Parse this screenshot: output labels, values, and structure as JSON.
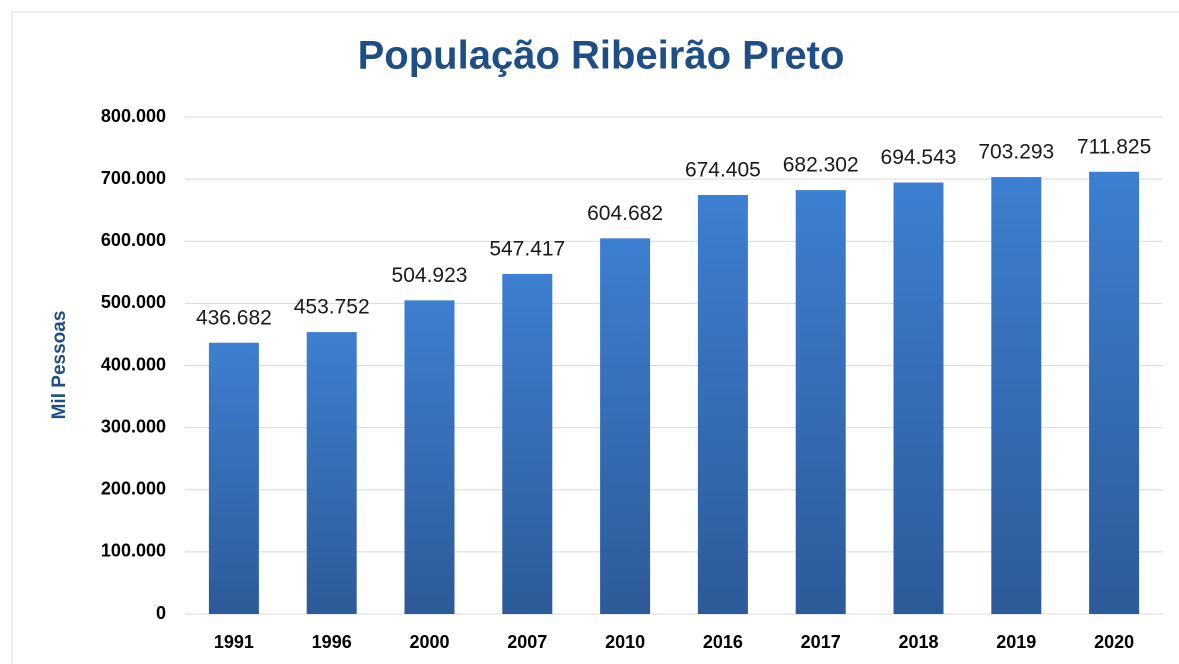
{
  "chart_data": {
    "type": "bar",
    "title": "População Ribeirão Preto",
    "y_label": "Mil Pessoas",
    "categories": [
      "1991",
      "1996",
      "2000",
      "2007",
      "2010",
      "2016",
      "2017",
      "2018",
      "2019",
      "2020"
    ],
    "values": [
      436682,
      453752,
      504923,
      547417,
      604682,
      674405,
      682302,
      694543,
      703293,
      711825
    ],
    "value_labels": [
      "436.682",
      "453.752",
      "504.923",
      "547.417",
      "604.682",
      "674.405",
      "682.302",
      "694.543",
      "703.293",
      "711.825"
    ],
    "color": "#3d7fd1",
    "ylim": [
      0,
      800000
    ],
    "yticks": [
      0,
      {
        "value": 100000,
        "label": "100.000"
      },
      {
        "value": 200000,
        "label": "200.000"
      },
      {
        "value": 300000,
        "label": "300.000"
      },
      {
        "value": 400000,
        "label": "400.000"
      },
      {
        "value": 500000,
        "label": "500.000"
      },
      {
        "value": 600000,
        "label": "600.000"
      },
      {
        "value": 700000,
        "label": "700.000"
      },
      {
        "value": 800000,
        "label": "800.000"
      }
    ],
    "grid": true
  }
}
